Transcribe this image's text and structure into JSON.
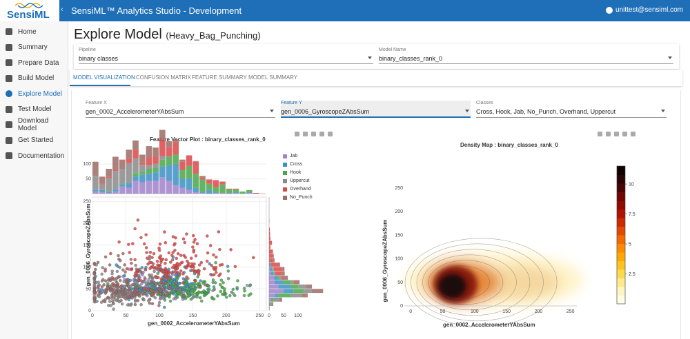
{
  "header": {
    "logo_text": "SensiML",
    "collapse_glyph": "‹",
    "title": "SensiML™ Analytics Studio - Development",
    "user_email": "unittest@sensiml.com"
  },
  "sidebar": {
    "items": [
      {
        "label": "Home",
        "icon": "home-icon",
        "active": false
      },
      {
        "label": "Summary",
        "icon": "summary-icon",
        "active": false
      },
      {
        "label": "Prepare Data",
        "icon": "data-icon",
        "active": false
      },
      {
        "label": "Build Model",
        "icon": "wrench-icon",
        "active": false
      },
      {
        "label": "Explore Model",
        "icon": "compass-icon",
        "active": true
      },
      {
        "label": "Test Model",
        "icon": "test-icon",
        "active": false
      },
      {
        "label": "Download Model",
        "icon": "cloud-download-icon",
        "active": false
      },
      {
        "label": "Get Started",
        "icon": "graduation-cap-icon",
        "active": false
      },
      {
        "label": "Documentation",
        "icon": "help-icon",
        "active": false
      }
    ]
  },
  "page": {
    "title": "Explore Model",
    "subtitle": "(Heavy_Bag_Punching)"
  },
  "selectors": {
    "pipeline": {
      "label": "Pipeline",
      "value": "binary classes"
    },
    "model": {
      "label": "Model Name",
      "value": "binary_classes_rank_0"
    }
  },
  "tabs": [
    "MODEL VISUALIZATION",
    "CONFUSION MATRIX",
    "FEATURE SUMMARY",
    "MODEL SUMMARY"
  ],
  "controls": {
    "feature_x": {
      "label": "Feature X",
      "value": "gen_0002_AccelerometerYAbsSum"
    },
    "feature_y": {
      "label": "Feature Y",
      "value": "gen_0006_GyroscopeZAbsSum"
    },
    "classes": {
      "label": "Classes",
      "value": "Cross, Hook, Jab, No_Punch, Overhand, Uppercut"
    }
  },
  "colors": {
    "accent": "#1e6fb7",
    "Jab": "#a083c9",
    "Cross": "#3d8fc4",
    "Hook": "#4aa64a",
    "Uppercut": "#8a8a8a",
    "Overhand": "#d94848",
    "No_Punch": "#9c6b66"
  },
  "chart_data": [
    {
      "type": "scatter",
      "title": "Feature Vector Plot : binary_classes_rank_0",
      "xlabel": "gen_0002_AccelerometerYAbsSum",
      "ylabel": "gen_0006_GyroscopeZAbsSum",
      "xlim": [
        0,
        260
      ],
      "ylim": [
        0,
        260
      ],
      "xticks": [
        0,
        50,
        100,
        150,
        200,
        250
      ],
      "yticks": [
        0,
        50,
        100,
        150,
        200,
        250
      ],
      "top_hist_ticks": [
        50,
        100
      ],
      "right_hist_ticks": [
        0,
        50,
        100
      ],
      "legend": [
        "Jab",
        "Cross",
        "Hook",
        "Uppercut",
        "Overhand",
        "No_Punch"
      ],
      "legend_position": "right",
      "series": [
        {
          "name": "Jab",
          "center": [
            95,
            50
          ],
          "spread": [
            35,
            20
          ]
        },
        {
          "name": "Cross",
          "center": [
            110,
            55
          ],
          "spread": [
            40,
            22
          ]
        },
        {
          "name": "Hook",
          "center": [
            150,
            45
          ],
          "spread": [
            40,
            20
          ]
        },
        {
          "name": "Uppercut",
          "center": [
            45,
            40
          ],
          "spread": [
            28,
            25
          ]
        },
        {
          "name": "Overhand",
          "center": [
            120,
            105
          ],
          "spread": [
            45,
            35
          ]
        },
        {
          "name": "No_Punch",
          "center": [
            60,
            55
          ],
          "spread": [
            40,
            35
          ]
        }
      ]
    },
    {
      "type": "heatmap",
      "title": "Density Map : binary_classes_rank_0",
      "xlabel": "gen_0002_AccelerometerYAbsSum",
      "ylabel": "gen_0006_GyroscopeZAbsSum",
      "xlim": [
        -10,
        260
      ],
      "ylim": [
        0,
        260
      ],
      "xticks": [
        0,
        50,
        100,
        150,
        200,
        250
      ],
      "yticks": [
        0,
        50,
        100,
        150,
        200,
        250
      ],
      "colorbar_ticks": [
        "10",
        "7.5",
        "5",
        "2.5"
      ],
      "colorbar_range": [
        0,
        11.5
      ]
    }
  ]
}
